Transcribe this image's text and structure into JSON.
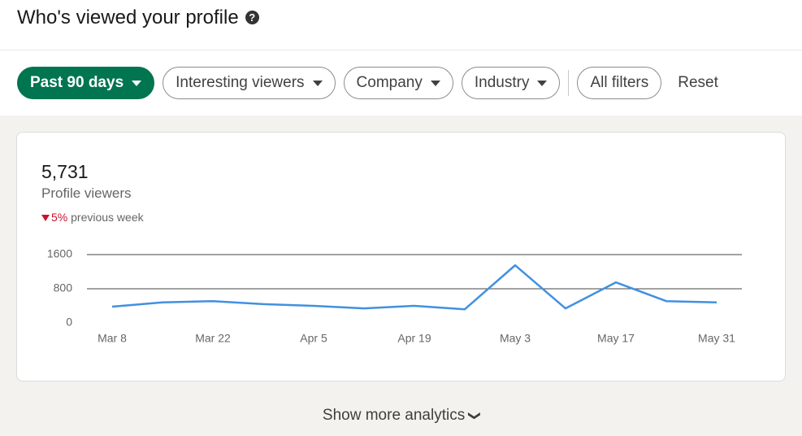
{
  "header": {
    "title": "Who's viewed your profile"
  },
  "filters": [
    "Past 90 days",
    "Interesting viewers",
    "Company",
    "Industry"
  ],
  "all_filters": "All filters",
  "reset": "Reset",
  "stats": {
    "count": "5,731",
    "label": "Profile viewers",
    "change": "5%",
    "change_label": "previous week"
  },
  "chart_data": {
    "type": "line",
    "categories": [
      "Mar 8",
      null,
      "Mar 22",
      null,
      "Apr 5",
      null,
      "Apr 19",
      null,
      "May 3",
      null,
      "May 17",
      null,
      "May 31"
    ],
    "series": [
      {
        "name": "Profile viewers",
        "color": "#4191e0",
        "values": [
          380,
          480,
          510,
          440,
          400,
          340,
          400,
          320,
          1350,
          340,
          950,
          510,
          480
        ]
      }
    ],
    "ylim": [
      0,
      1600
    ],
    "yticks": [
      0,
      800,
      1600
    ],
    "grid": true
  },
  "footer": {
    "link": "Show more analytics"
  }
}
